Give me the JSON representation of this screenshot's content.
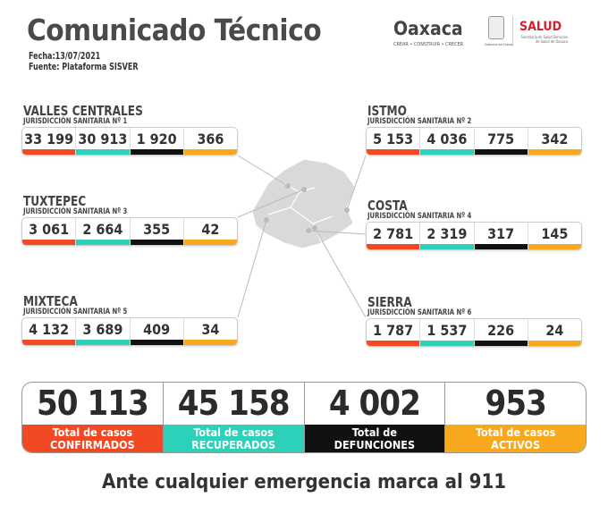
{
  "header": {
    "title": "Comunicado Técnico",
    "date": "Fecha:13/07/2021",
    "source": "Fuente: Plataforma SISVER"
  },
  "logos": {
    "state": "Oaxaca",
    "state_tagline": "CREAR • CONSTRUIR • CRECER",
    "government": "Gobierno del Estado",
    "health": "SALUD",
    "health_sub": "Secretaría de Salud Servicios de Salud de Oaxaca"
  },
  "colors": {
    "confirmados": "#f04923",
    "recuperados": "#2dd0b8",
    "defunciones": "#111111",
    "activos": "#f7a81c"
  },
  "regions": [
    {
      "name": "VALLES CENTRALES",
      "sub": "JURISDICCIÓN SANITARIA Nº 1",
      "values": [
        "33 199",
        "30 913",
        "1 920",
        "366"
      ]
    },
    {
      "name": "ISTMO",
      "sub": "JURISDICCIÓN SANITARIA Nº 2",
      "values": [
        "5 153",
        "4 036",
        "775",
        "342"
      ]
    },
    {
      "name": "TUXTEPEC",
      "sub": "JURISDICCIÓN SANITARIA Nº 3",
      "values": [
        "3 061",
        "2 664",
        "355",
        "42"
      ]
    },
    {
      "name": "COSTA",
      "sub": "JURISDICCIÓN SANITARIA Nº 4",
      "values": [
        "2 781",
        "2 319",
        "317",
        "145"
      ]
    },
    {
      "name": "MIXTECA",
      "sub": "JURISDICCIÓN SANITARIA Nº 5",
      "values": [
        "4 132",
        "3 689",
        "409",
        "34"
      ]
    },
    {
      "name": "SIERRA",
      "sub": "JURISDICCIÓN SANITARIA Nº 6",
      "values": [
        "1 787",
        "1 537",
        "226",
        "24"
      ]
    }
  ],
  "totals": [
    {
      "value": "50 113",
      "l1": "Total de casos",
      "l2": "CONFIRMADOS"
    },
    {
      "value": "45 158",
      "l1": "Total de casos",
      "l2": "RECUPERADOS"
    },
    {
      "value": "4 002",
      "l1": "Total de",
      "l2": "DEFUNCIONES"
    },
    {
      "value": "953",
      "l1": "Total de casos",
      "l2": "ACTIVOS"
    }
  ],
  "footer": "Ante cualquier emergencia marca al 911"
}
